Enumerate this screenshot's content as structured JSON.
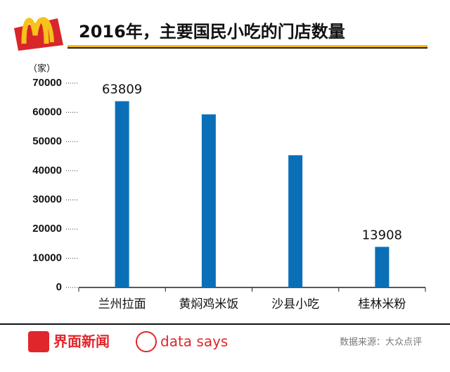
{
  "chart_data": {
    "type": "bar",
    "title": "2016年，主要国民小吃的门店数量",
    "y_label": "（家）",
    "categories": [
      "兰州拉面",
      "黄焖鸡米饭",
      "沙县小吃",
      "桂林米粉"
    ],
    "values": [
      63809,
      59300,
      45300,
      13908
    ],
    "value_labels": [
      "63809",
      null,
      null,
      "13908"
    ],
    "color": "#0a6fb7",
    "ylim": [
      0,
      70000
    ],
    "yticks": [
      0,
      10000,
      20000,
      30000,
      40000,
      50000,
      60000,
      70000
    ]
  },
  "footer": {
    "brand": "界面新闻",
    "brand2": "data says",
    "source": "数据来源：大众点评"
  }
}
